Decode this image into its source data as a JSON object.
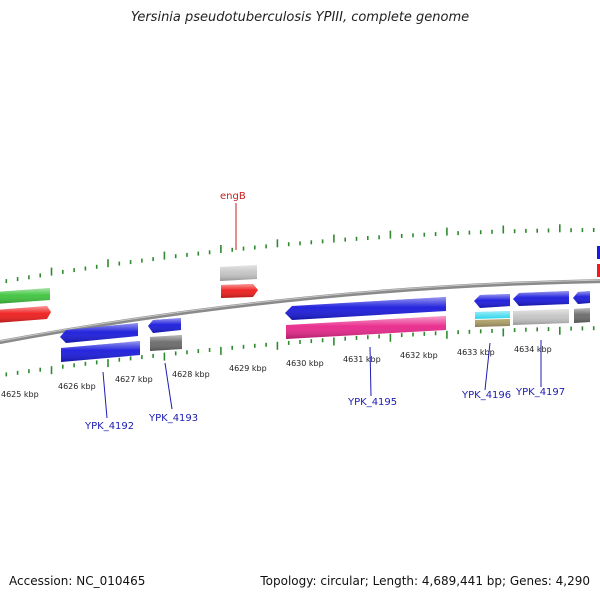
{
  "title": "Yersinia pseudotuberculosis YPIII, complete genome",
  "footer": {
    "accession": "Accession: NC_010465",
    "stats": "Topology: circular; Length: 4,689,441 bp; Genes: 4,290"
  },
  "colors": {
    "backbone": "#8a8a8a",
    "tick": "#2f8a2f",
    "cds_blue": "#1a1adc",
    "rrna_pink": "#e8268a",
    "gene_red": "#ee1c1c",
    "gene_green": "#3ec43e",
    "light_gray": "#c4c4c4",
    "dark_gray": "#6a6a6a",
    "cyan": "#2ad6ee",
    "khaki": "#b4a46a",
    "label_red": "#c81e1e",
    "label_blue": "#1c1cb4"
  },
  "kbp_labels": [
    "4625 kbp",
    "4626 kbp",
    "4627 kbp",
    "4628 kbp",
    "4629 kbp",
    "4630 kbp",
    "4631 kbp",
    "4632 kbp",
    "4633 kbp",
    "4634 kbp"
  ],
  "gene_labels": [
    "engB",
    "YPK_4192",
    "YPK_4193",
    "YPK_4195",
    "YPK_4196",
    "YPK_4197"
  ]
}
